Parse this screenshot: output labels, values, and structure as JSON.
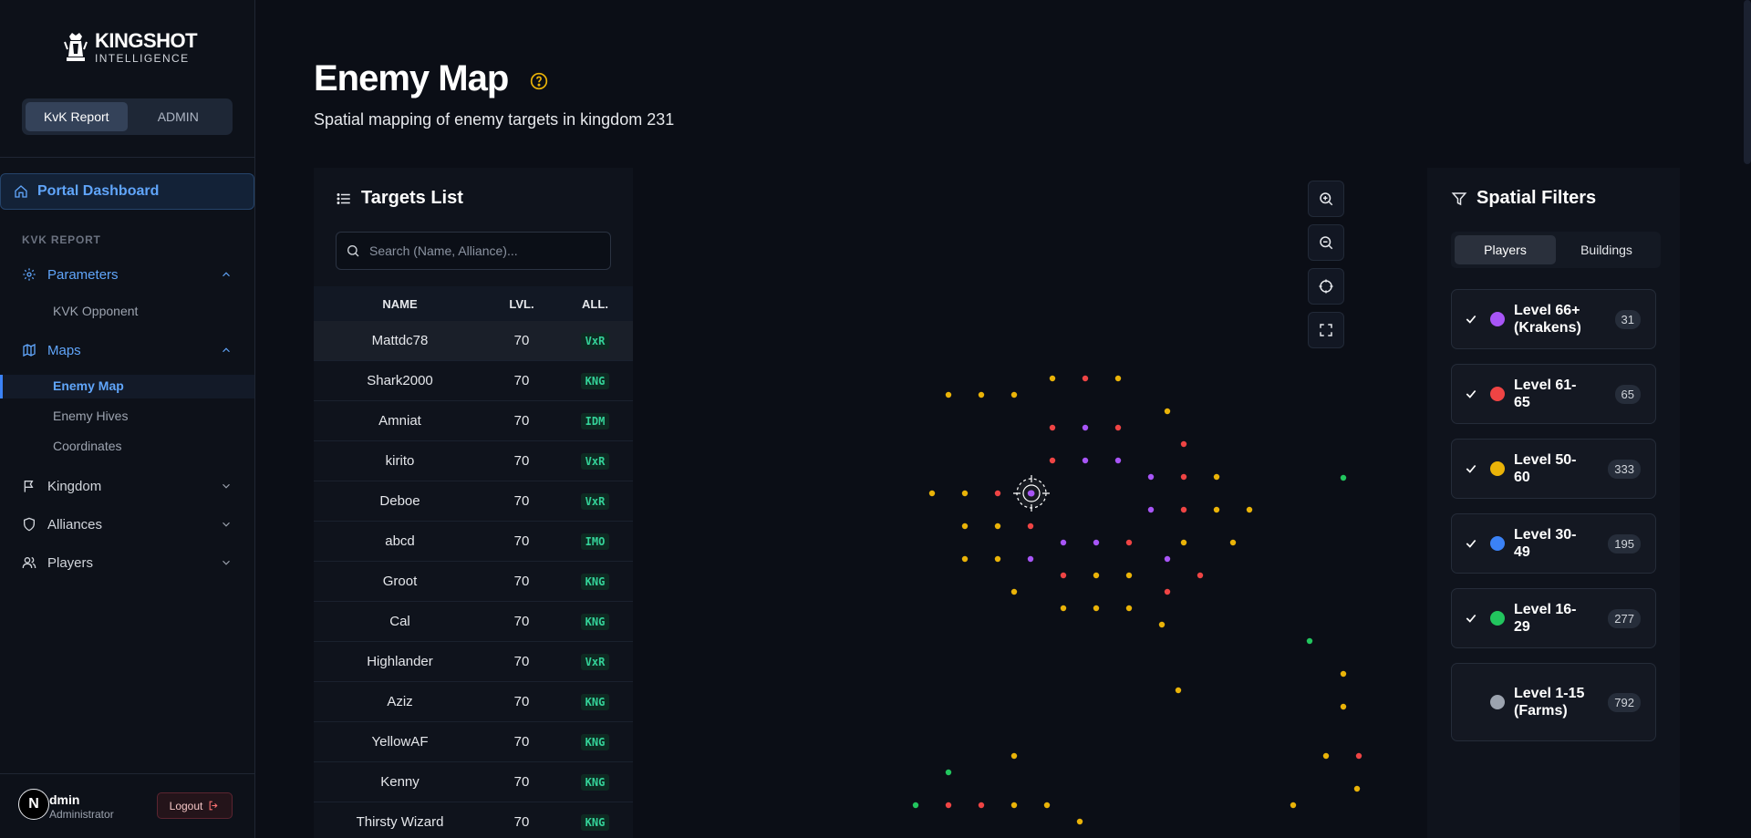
{
  "brand": {
    "title": "KINGSHOT",
    "subtitle": "INTELLIGENCE"
  },
  "mode_switch": [
    {
      "label": "KvK Report",
      "active": true
    },
    {
      "label": "ADMIN",
      "active": false
    }
  ],
  "nav": {
    "portal": "Portal Dashboard",
    "section": "KVK REPORT",
    "parameters": "Parameters",
    "kvk_opponent": "KVK Opponent",
    "maps": "Maps",
    "enemy_map": "Enemy Map",
    "enemy_hives": "Enemy Hives",
    "coordinates": "Coordinates",
    "kingdom": "Kingdom",
    "alliances": "Alliances",
    "players": "Players"
  },
  "user": {
    "initial": "N",
    "name": "dmin",
    "role": "Administrator",
    "logout": "Logout"
  },
  "header": {
    "title": "Enemy Map",
    "subtitle": "Spatial mapping of enemy targets in kingdom 231"
  },
  "targets": {
    "title": "Targets List",
    "search_placeholder": "Search (Name, Alliance)...",
    "columns": {
      "name": "NAME",
      "lvl": "LVL.",
      "all": "ALL."
    },
    "rows": [
      {
        "name": "Mattdc78",
        "lvl": "70",
        "all": "VxR"
      },
      {
        "name": "Shark2000",
        "lvl": "70",
        "all": "KNG"
      },
      {
        "name": "Amniat",
        "lvl": "70",
        "all": "IDM"
      },
      {
        "name": "kirito",
        "lvl": "70",
        "all": "VxR"
      },
      {
        "name": "Deboe",
        "lvl": "70",
        "all": "VxR"
      },
      {
        "name": "abcd",
        "lvl": "70",
        "all": "IMO"
      },
      {
        "name": "Groot",
        "lvl": "70",
        "all": "KNG"
      },
      {
        "name": "Cal",
        "lvl": "70",
        "all": "KNG"
      },
      {
        "name": "Highlander",
        "lvl": "70",
        "all": "VxR"
      },
      {
        "name": "Aziz",
        "lvl": "70",
        "all": "KNG"
      },
      {
        "name": "YellowAF",
        "lvl": "70",
        "all": "KNG"
      },
      {
        "name": "Kenny",
        "lvl": "70",
        "all": "KNG"
      },
      {
        "name": "Thirsty Wizard",
        "lvl": "70",
        "all": "KNG"
      }
    ]
  },
  "filters": {
    "title": "Spatial Filters",
    "tabs": [
      {
        "label": "Players",
        "active": true
      },
      {
        "label": "Buildings",
        "active": false
      }
    ],
    "levels": [
      {
        "label": "Level 66+ (Krakens)",
        "count": "31",
        "color": "#a855f7",
        "checked": true
      },
      {
        "label": "Level 61-65",
        "count": "65",
        "color": "#ef4444",
        "checked": true
      },
      {
        "label": "Level 50-60",
        "count": "333",
        "color": "#eab308",
        "checked": true
      },
      {
        "label": "Level 30-49",
        "count": "195",
        "color": "#3b82f6",
        "checked": true
      },
      {
        "label": "Level 16-29",
        "count": "277",
        "color": "#22c55e",
        "checked": true
      },
      {
        "label": "Level 1-15 (Farms)",
        "count": "792",
        "color": "#9ca3af",
        "checked": false
      }
    ]
  }
}
